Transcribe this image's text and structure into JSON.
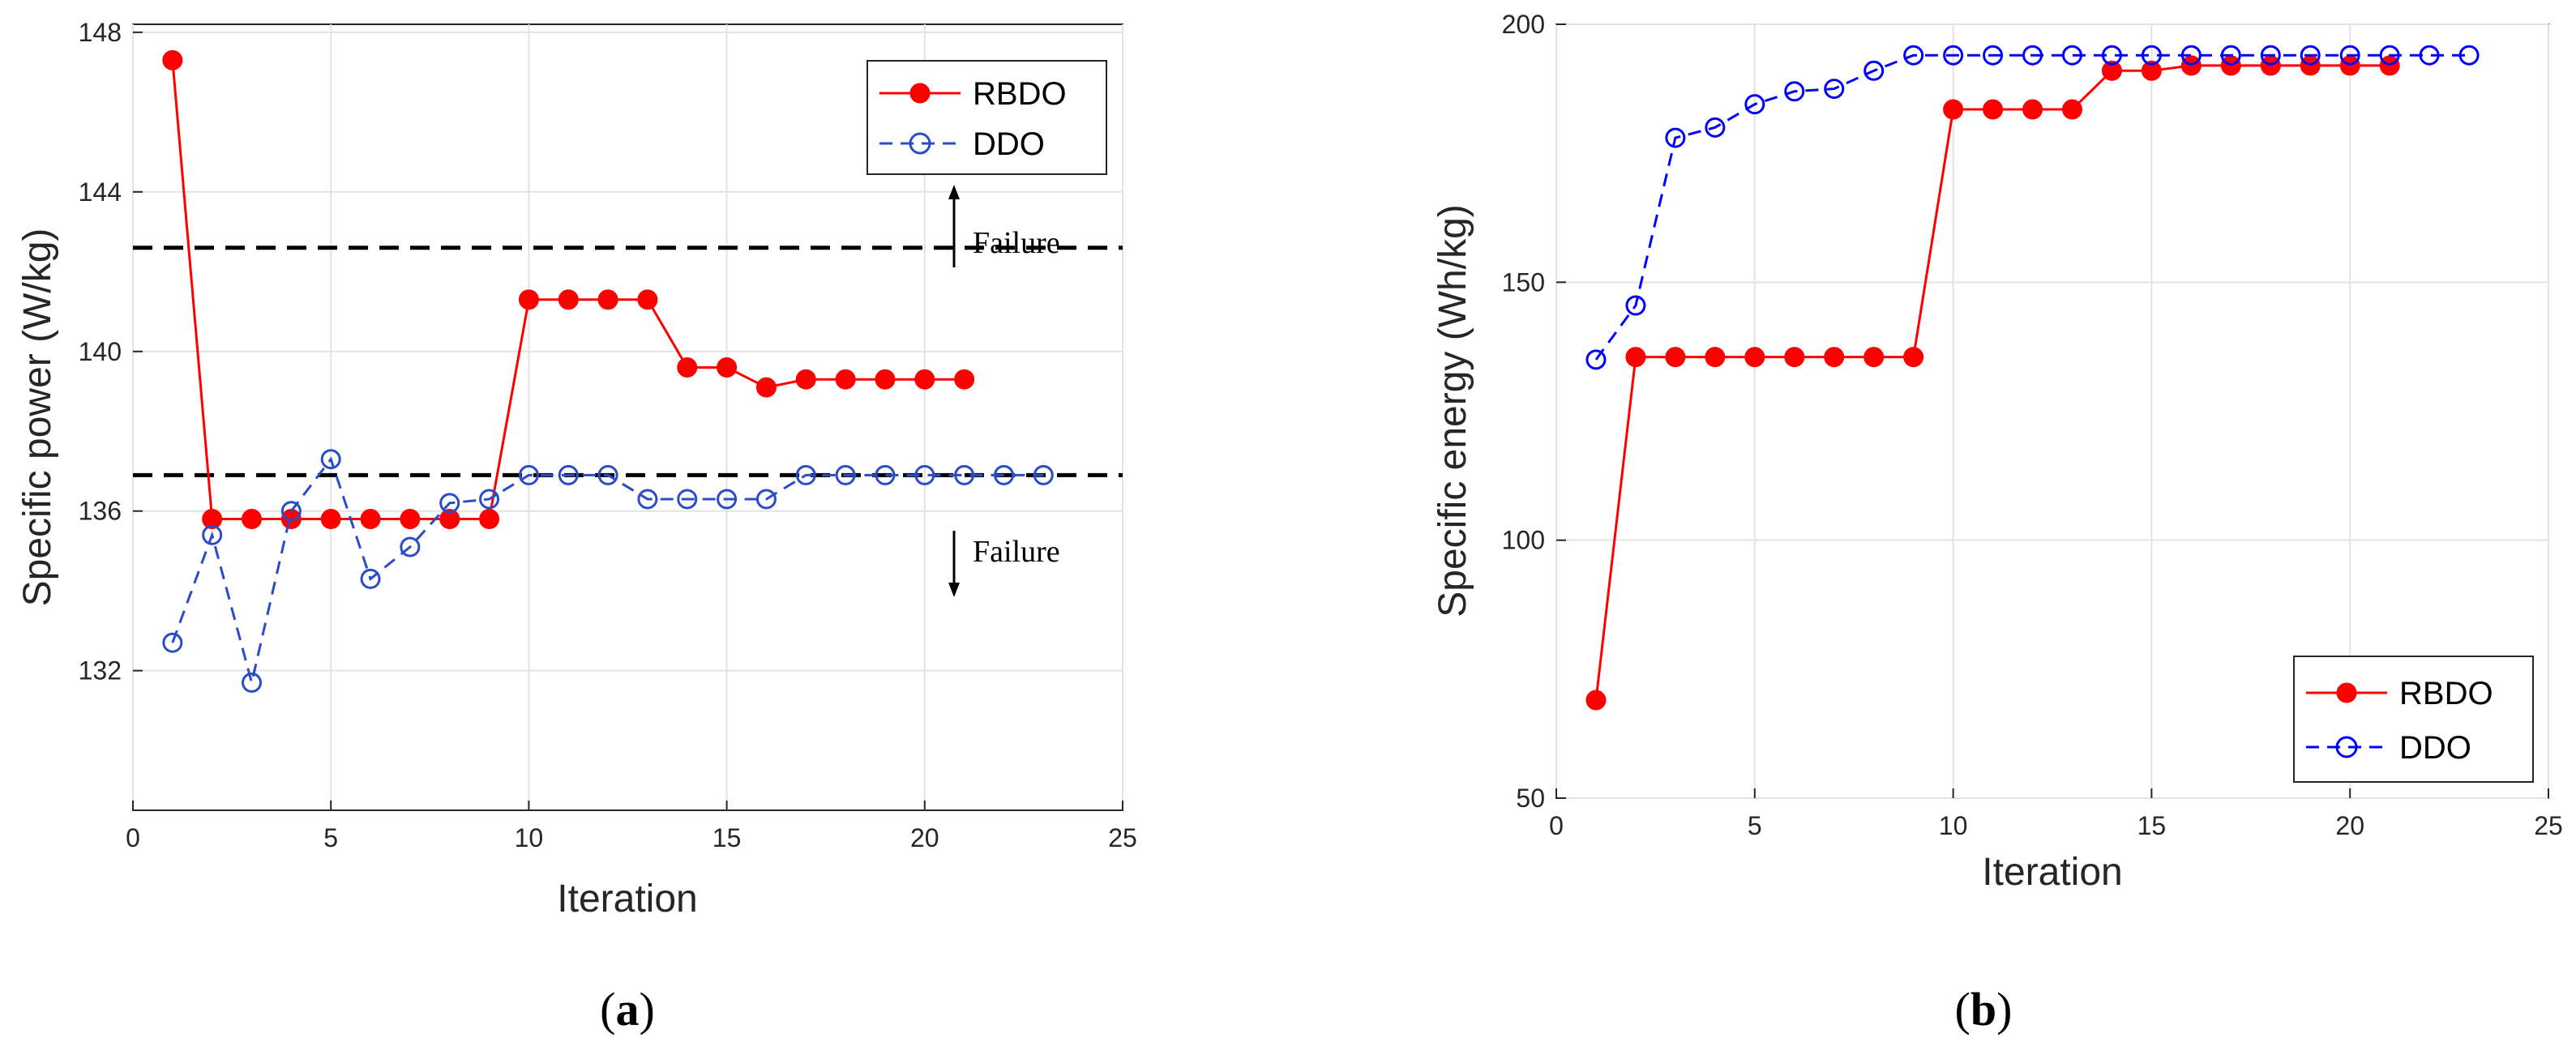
{
  "colors": {
    "rbdo": "#ff0000",
    "ddo": "#2b4cc8",
    "ddo_b": "#0000ff",
    "grid": "#e3e3e3",
    "threshold": "#000000",
    "axis": "#262626"
  },
  "chart_data": [
    {
      "type": "line",
      "panel_label": {
        "open": "(",
        "letter": "a",
        "close": ")"
      },
      "xlabel": "Iteration",
      "ylabel": "Specific power (W/kg)",
      "xlim": [
        0,
        25
      ],
      "ylim": [
        128.5,
        148.2
      ],
      "xticks": [
        "0",
        "5",
        "10",
        "15",
        "20",
        "25"
      ],
      "yticks": [
        "132",
        "136",
        "140",
        "144",
        "148"
      ],
      "grid": true,
      "legend_position": "top-right",
      "series": [
        {
          "name": "RBDO",
          "x": [
            1,
            2,
            3,
            4,
            5,
            6,
            7,
            8,
            9,
            10,
            11,
            12,
            13,
            14,
            15,
            16,
            17,
            18,
            19,
            20,
            21
          ],
          "values": [
            147.3,
            135.8,
            135.8,
            135.8,
            135.8,
            135.8,
            135.8,
            135.8,
            135.8,
            141.3,
            141.3,
            141.3,
            141.3,
            139.6,
            139.6,
            139.1,
            139.3,
            139.3,
            139.3,
            139.3,
            139.3
          ]
        },
        {
          "name": "DDO",
          "x": [
            1,
            2,
            3,
            4,
            5,
            6,
            7,
            8,
            9,
            10,
            11,
            12,
            13,
            14,
            15,
            16,
            17,
            18,
            19,
            20,
            21,
            22,
            23
          ],
          "values": [
            132.7,
            135.4,
            131.7,
            136.0,
            137.3,
            134.3,
            135.1,
            136.2,
            136.3,
            136.9,
            136.9,
            136.9,
            136.3,
            136.3,
            136.3,
            136.3,
            136.9,
            136.9,
            136.9,
            136.9,
            136.9,
            136.9,
            136.9
          ]
        }
      ],
      "thresholds": [
        {
          "y": 142.6,
          "label": "Failure",
          "arrow": "up"
        },
        {
          "y": 136.9,
          "label": "Failure",
          "arrow": "down"
        }
      ]
    },
    {
      "type": "line",
      "panel_label": {
        "open": "(",
        "letter": "b",
        "close": ")"
      },
      "xlabel": "Iteration",
      "ylabel": "Specific energy (Wh/kg)",
      "xlim": [
        0,
        25
      ],
      "ylim": [
        50,
        200
      ],
      "xticks": [
        "0",
        "5",
        "10",
        "15",
        "20",
        "25"
      ],
      "yticks": [
        "50",
        "100",
        "150",
        "200"
      ],
      "grid": true,
      "legend_position": "bottom-right",
      "series": [
        {
          "name": "RBDO",
          "x": [
            1,
            2,
            3,
            4,
            5,
            6,
            7,
            8,
            9,
            10,
            11,
            12,
            13,
            14,
            15,
            16,
            17,
            18,
            19,
            20,
            21
          ],
          "values": [
            69,
            135.5,
            135.5,
            135.5,
            135.5,
            135.5,
            135.5,
            135.5,
            135.5,
            183.5,
            183.5,
            183.5,
            183.5,
            191,
            191,
            192,
            192,
            192,
            192,
            192,
            192
          ]
        },
        {
          "name": "DDO",
          "x": [
            1,
            2,
            3,
            4,
            5,
            6,
            7,
            8,
            9,
            10,
            11,
            12,
            13,
            14,
            15,
            16,
            17,
            18,
            19,
            20,
            21,
            22,
            23
          ],
          "values": [
            135,
            145.5,
            178,
            180,
            184.5,
            187,
            187.5,
            191,
            194,
            194,
            194,
            194,
            194,
            194,
            194,
            194,
            194,
            194,
            194,
            194,
            194,
            194,
            194
          ]
        }
      ]
    }
  ]
}
